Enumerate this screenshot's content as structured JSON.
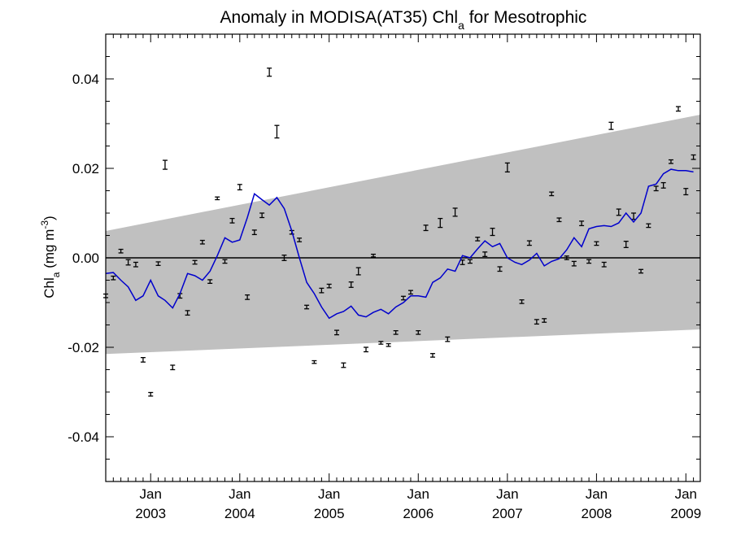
{
  "chart_data": {
    "type": "scatter",
    "title": {
      "prefix": "Anomaly in MODISA(AT35) Chl",
      "subscript": "a",
      "suffix": " for Mesotrophic"
    },
    "ylabel": {
      "prefix": "Chl",
      "subscript": "a",
      "middle": " (mg m",
      "superscript": "-3",
      "suffix": ")"
    },
    "xlim": [
      "2002-07-01",
      "2009-03-01"
    ],
    "ylim": [
      -0.05,
      0.05
    ],
    "grid": false,
    "legend": "none",
    "x_ticks": [
      {
        "date": "2003-01-01",
        "month": "Jan",
        "year": "2003"
      },
      {
        "date": "2004-01-01",
        "month": "Jan",
        "year": "2004"
      },
      {
        "date": "2005-01-01",
        "month": "Jan",
        "year": "2005"
      },
      {
        "date": "2006-01-01",
        "month": "Jan",
        "year": "2006"
      },
      {
        "date": "2007-01-01",
        "month": "Jan",
        "year": "2007"
      },
      {
        "date": "2008-01-01",
        "month": "Jan",
        "year": "2008"
      },
      {
        "date": "2009-01-01",
        "month": "Jan",
        "year": "2009"
      }
    ],
    "y_ticks": [
      {
        "value": 0.04,
        "label": "0.04"
      },
      {
        "value": 0.02,
        "label": "0.02"
      },
      {
        "value": 0.0,
        "label": "0.00"
      },
      {
        "value": -0.02,
        "label": "-0.02"
      },
      {
        "value": -0.04,
        "label": "-0.04"
      }
    ],
    "band": {
      "color": "#c0c0c0",
      "lower": [
        [
          "2002-07-01",
          -0.0215
        ],
        [
          "2009-03-01",
          -0.016
        ]
      ],
      "upper": [
        [
          "2002-07-01",
          0.006
        ],
        [
          "2009-03-01",
          0.032
        ]
      ]
    },
    "zero_line_color": "#000000",
    "smoothed_line": {
      "color": "#0000cc",
      "points": [
        [
          "2002-07-01",
          -0.0035
        ],
        [
          "2002-08-01",
          -0.0033
        ],
        [
          "2002-09-01",
          -0.005
        ],
        [
          "2002-10-01",
          -0.0065
        ],
        [
          "2002-11-01",
          -0.0095
        ],
        [
          "2002-12-01",
          -0.0085
        ],
        [
          "2003-01-01",
          -0.005
        ],
        [
          "2003-02-01",
          -0.0085
        ],
        [
          "2003-03-01",
          -0.0095
        ],
        [
          "2003-04-01",
          -0.0112
        ],
        [
          "2003-05-01",
          -0.008
        ],
        [
          "2003-06-01",
          -0.0035
        ],
        [
          "2003-07-01",
          -0.004
        ],
        [
          "2003-08-01",
          -0.005
        ],
        [
          "2003-09-01",
          -0.003
        ],
        [
          "2003-10-01",
          0.0005
        ],
        [
          "2003-11-01",
          0.0045
        ],
        [
          "2003-12-01",
          0.0035
        ],
        [
          "2004-01-01",
          0.004
        ],
        [
          "2004-02-01",
          0.009
        ],
        [
          "2004-03-01",
          0.0143
        ],
        [
          "2004-04-01",
          0.013
        ],
        [
          "2004-05-01",
          0.0118
        ],
        [
          "2004-06-01",
          0.0135
        ],
        [
          "2004-07-01",
          0.011
        ],
        [
          "2004-08-01",
          0.006
        ],
        [
          "2004-09-01",
          0.0
        ],
        [
          "2004-10-01",
          -0.0055
        ],
        [
          "2004-11-01",
          -0.008
        ],
        [
          "2004-12-01",
          -0.011
        ],
        [
          "2005-01-01",
          -0.0135
        ],
        [
          "2005-02-01",
          -0.0125
        ],
        [
          "2005-03-01",
          -0.012
        ],
        [
          "2005-04-01",
          -0.0108
        ],
        [
          "2005-05-01",
          -0.0128
        ],
        [
          "2005-06-01",
          -0.0132
        ],
        [
          "2005-07-01",
          -0.0122
        ],
        [
          "2005-08-01",
          -0.0115
        ],
        [
          "2005-09-01",
          -0.0125
        ],
        [
          "2005-10-01",
          -0.011
        ],
        [
          "2005-11-01",
          -0.01
        ],
        [
          "2005-12-01",
          -0.0085
        ],
        [
          "2006-01-01",
          -0.0085
        ],
        [
          "2006-02-01",
          -0.0088
        ],
        [
          "2006-03-01",
          -0.0055
        ],
        [
          "2006-04-01",
          -0.0045
        ],
        [
          "2006-05-01",
          -0.0025
        ],
        [
          "2006-06-01",
          -0.003
        ],
        [
          "2006-07-01",
          0.0005
        ],
        [
          "2006-08-01",
          0.0
        ],
        [
          "2006-09-01",
          0.002
        ],
        [
          "2006-10-01",
          0.0038
        ],
        [
          "2006-11-01",
          0.0025
        ],
        [
          "2006-12-01",
          0.0032
        ],
        [
          "2007-01-01",
          0.0
        ],
        [
          "2007-02-01",
          -0.001
        ],
        [
          "2007-03-01",
          -0.0015
        ],
        [
          "2007-04-01",
          -0.0005
        ],
        [
          "2007-05-01",
          0.001
        ],
        [
          "2007-06-01",
          -0.0018
        ],
        [
          "2007-07-01",
          -0.0008
        ],
        [
          "2007-08-01",
          -0.0002
        ],
        [
          "2007-09-01",
          0.0018
        ],
        [
          "2007-10-01",
          0.0045
        ],
        [
          "2007-11-01",
          0.0025
        ],
        [
          "2007-12-01",
          0.0065
        ],
        [
          "2008-01-01",
          0.007
        ],
        [
          "2008-02-01",
          0.0072
        ],
        [
          "2008-03-01",
          0.007
        ],
        [
          "2008-04-01",
          0.0078
        ],
        [
          "2008-05-01",
          0.01
        ],
        [
          "2008-06-01",
          0.008
        ],
        [
          "2008-07-01",
          0.01
        ],
        [
          "2008-08-01",
          0.016
        ],
        [
          "2008-09-01",
          0.0165
        ],
        [
          "2008-10-01",
          0.0188
        ],
        [
          "2008-11-01",
          0.0198
        ],
        [
          "2008-12-01",
          0.0195
        ],
        [
          "2009-01-01",
          0.0195
        ],
        [
          "2009-02-01",
          0.0192
        ]
      ]
    },
    "points_color": "#000000",
    "points": [
      {
        "x": "2002-07-01",
        "y": -0.0085,
        "err": 0.0004
      },
      {
        "x": "2002-08-01",
        "y": -0.0045,
        "err": 0.0004
      },
      {
        "x": "2002-09-01",
        "y": 0.0015,
        "err": 0.0004
      },
      {
        "x": "2002-10-01",
        "y": -0.001,
        "err": 0.0006
      },
      {
        "x": "2002-11-01",
        "y": -0.0015,
        "err": 0.0005
      },
      {
        "x": "2002-12-01",
        "y": -0.0228,
        "err": 0.0005
      },
      {
        "x": "2003-01-01",
        "y": -0.0305,
        "err": 0.0004
      },
      {
        "x": "2003-02-01",
        "y": -0.0013,
        "err": 0.0004
      },
      {
        "x": "2003-03-01",
        "y": 0.0208,
        "err": 0.001
      },
      {
        "x": "2003-04-01",
        "y": -0.0245,
        "err": 0.0005
      },
      {
        "x": "2003-05-01",
        "y": -0.0085,
        "err": 0.0005
      },
      {
        "x": "2003-06-01",
        "y": -0.0123,
        "err": 0.0005
      },
      {
        "x": "2003-07-01",
        "y": -0.001,
        "err": 0.0004
      },
      {
        "x": "2003-08-01",
        "y": 0.0035,
        "err": 0.0004
      },
      {
        "x": "2003-09-01",
        "y": -0.0053,
        "err": 0.0004
      },
      {
        "x": "2003-10-01",
        "y": 0.0133,
        "err": 0.0003
      },
      {
        "x": "2003-11-01",
        "y": -0.0008,
        "err": 0.0004
      },
      {
        "x": "2003-12-01",
        "y": 0.0083,
        "err": 0.0005
      },
      {
        "x": "2004-01-01",
        "y": 0.0158,
        "err": 0.0006
      },
      {
        "x": "2004-02-01",
        "y": -0.0088,
        "err": 0.0005
      },
      {
        "x": "2004-03-01",
        "y": 0.0057,
        "err": 0.0005
      },
      {
        "x": "2004-04-01",
        "y": 0.0095,
        "err": 0.0005
      },
      {
        "x": "2004-05-01",
        "y": 0.0415,
        "err": 0.0009
      },
      {
        "x": "2004-06-01",
        "y": 0.0282,
        "err": 0.0014
      },
      {
        "x": "2004-07-01",
        "y": 0.0,
        "err": 0.0006
      },
      {
        "x": "2004-08-01",
        "y": 0.0057,
        "err": 0.0004
      },
      {
        "x": "2004-09-01",
        "y": 0.004,
        "err": 0.0004
      },
      {
        "x": "2004-10-01",
        "y": -0.011,
        "err": 0.0004
      },
      {
        "x": "2004-11-01",
        "y": -0.0233,
        "err": 0.0003
      },
      {
        "x": "2004-12-01",
        "y": -0.0073,
        "err": 0.0005
      },
      {
        "x": "2005-01-01",
        "y": -0.0063,
        "err": 0.0004
      },
      {
        "x": "2005-02-01",
        "y": -0.0167,
        "err": 0.0005
      },
      {
        "x": "2005-03-01",
        "y": -0.024,
        "err": 0.0005
      },
      {
        "x": "2005-04-01",
        "y": -0.006,
        "err": 0.0006
      },
      {
        "x": "2005-05-01",
        "y": -0.003,
        "err": 0.0008
      },
      {
        "x": "2005-06-01",
        "y": -0.0205,
        "err": 0.0005
      },
      {
        "x": "2005-07-01",
        "y": 0.0005,
        "err": 0.0003
      },
      {
        "x": "2005-08-01",
        "y": -0.019,
        "err": 0.0003
      },
      {
        "x": "2005-09-01",
        "y": -0.0195,
        "err": 0.0003
      },
      {
        "x": "2005-10-01",
        "y": -0.0167,
        "err": 0.0004
      },
      {
        "x": "2005-11-01",
        "y": -0.009,
        "err": 0.0004
      },
      {
        "x": "2005-12-01",
        "y": -0.0077,
        "err": 0.0004
      },
      {
        "x": "2006-01-01",
        "y": -0.0167,
        "err": 0.0004
      },
      {
        "x": "2006-02-01",
        "y": 0.0067,
        "err": 0.0006
      },
      {
        "x": "2006-03-01",
        "y": -0.0218,
        "err": 0.0004
      },
      {
        "x": "2006-04-01",
        "y": 0.0078,
        "err": 0.001
      },
      {
        "x": "2006-05-01",
        "y": -0.0182,
        "err": 0.0005
      },
      {
        "x": "2006-06-01",
        "y": 0.0102,
        "err": 0.0009
      },
      {
        "x": "2006-07-01",
        "y": -0.001,
        "err": 0.0005
      },
      {
        "x": "2006-08-01",
        "y": -0.0008,
        "err": 0.0004
      },
      {
        "x": "2006-09-01",
        "y": 0.0042,
        "err": 0.0004
      },
      {
        "x": "2006-10-01",
        "y": 0.0008,
        "err": 0.0005
      },
      {
        "x": "2006-11-01",
        "y": 0.0058,
        "err": 0.0008
      },
      {
        "x": "2006-12-01",
        "y": -0.0025,
        "err": 0.0005
      },
      {
        "x": "2007-01-01",
        "y": 0.0202,
        "err": 0.001
      },
      {
        "x": "2007-03-01",
        "y": -0.0098,
        "err": 0.0004
      },
      {
        "x": "2007-04-01",
        "y": 0.0033,
        "err": 0.0005
      },
      {
        "x": "2007-05-01",
        "y": -0.0143,
        "err": 0.0005
      },
      {
        "x": "2007-06-01",
        "y": -0.014,
        "err": 0.0004
      },
      {
        "x": "2007-07-01",
        "y": 0.0143,
        "err": 0.0004
      },
      {
        "x": "2007-08-01",
        "y": 0.0085,
        "err": 0.0004
      },
      {
        "x": "2007-09-01",
        "y": 0.0,
        "err": 0.0004
      },
      {
        "x": "2007-10-01",
        "y": -0.0013,
        "err": 0.0005
      },
      {
        "x": "2007-11-01",
        "y": 0.0077,
        "err": 0.0005
      },
      {
        "x": "2007-12-01",
        "y": -0.0008,
        "err": 0.0004
      },
      {
        "x": "2008-01-01",
        "y": 0.0032,
        "err": 0.0004
      },
      {
        "x": "2008-02-01",
        "y": -0.0015,
        "err": 0.0005
      },
      {
        "x": "2008-03-01",
        "y": 0.0295,
        "err": 0.0008
      },
      {
        "x": "2008-04-01",
        "y": 0.0102,
        "err": 0.0007
      },
      {
        "x": "2008-05-01",
        "y": 0.003,
        "err": 0.0007
      },
      {
        "x": "2008-06-01",
        "y": 0.0093,
        "err": 0.0007
      },
      {
        "x": "2008-07-01",
        "y": -0.003,
        "err": 0.0004
      },
      {
        "x": "2008-08-01",
        "y": 0.0072,
        "err": 0.0004
      },
      {
        "x": "2008-09-01",
        "y": 0.0155,
        "err": 0.0005
      },
      {
        "x": "2008-10-01",
        "y": 0.0162,
        "err": 0.0006
      },
      {
        "x": "2008-11-01",
        "y": 0.0215,
        "err": 0.0004
      },
      {
        "x": "2008-12-01",
        "y": 0.0333,
        "err": 0.0005
      },
      {
        "x": "2009-01-01",
        "y": 0.0148,
        "err": 0.0007
      },
      {
        "x": "2009-02-01",
        "y": 0.0225,
        "err": 0.0005
      }
    ]
  }
}
